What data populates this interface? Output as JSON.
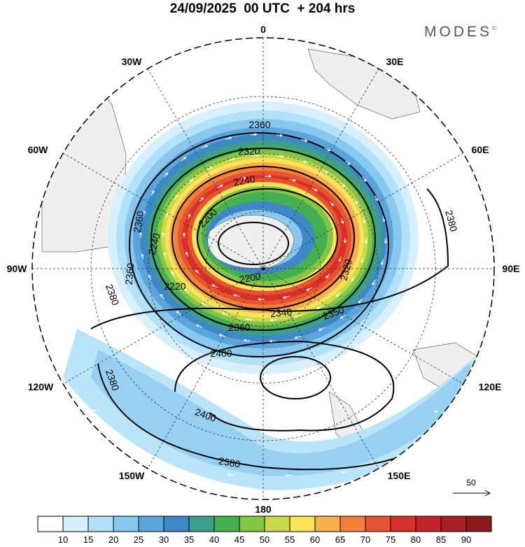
{
  "header": {
    "title": "24/09/2025  00 UTC  + 204 hrs",
    "brand": "MODES",
    "brand_mark": "©"
  },
  "map": {
    "projection": "south-polar-stereographic",
    "longitude_labels": [
      "0",
      "30E",
      "60E",
      "90E",
      "120E",
      "150E",
      "180",
      "150W",
      "120W",
      "90W",
      "60W",
      "30W"
    ],
    "contour_labels": [
      "2360",
      "2320",
      "2240",
      "2200",
      "2360",
      "2380",
      "2240",
      "2360",
      "2220",
      "2200",
      "2320",
      "2340",
      "2350",
      "2380",
      "2400",
      "2360",
      "2380",
      "2400",
      "2380"
    ],
    "wind_reference": {
      "value": "50"
    }
  },
  "colors": {
    "land": "#efefef",
    "coast": "#666666",
    "scale": [
      "#ffffff",
      "#d6f1fd",
      "#b2e1fa",
      "#89c8ee",
      "#5ca5dc",
      "#3e88c7",
      "#3e9e8e",
      "#45b04f",
      "#84c446",
      "#c9d94c",
      "#fbe35a",
      "#f7b04b",
      "#f47f3b",
      "#e8532f",
      "#d63028",
      "#c3242a",
      "#a91f27",
      "#8b1a1d"
    ]
  },
  "legend": {
    "ticks": [
      "10",
      "15",
      "20",
      "25",
      "30",
      "35",
      "40",
      "45",
      "50",
      "55",
      "60",
      "65",
      "70",
      "75",
      "80",
      "85",
      "90"
    ]
  }
}
